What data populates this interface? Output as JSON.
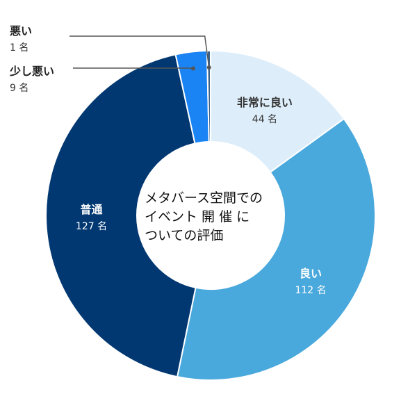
{
  "chart_data": {
    "type": "pie",
    "title_lines": [
      "メタバース空間での",
      "イベント 開 催 に",
      "ついての評価"
    ],
    "unit": "名",
    "categories": [
      "非常に良い",
      "良い",
      "普通",
      "少し悪い",
      "悪い"
    ],
    "values": [
      44,
      112,
      127,
      9,
      1
    ],
    "colors": [
      "#ddeefa",
      "#4aa9dc",
      "#023872",
      "#1a84f4",
      "#3c5f86"
    ],
    "label_colors": [
      "#333333",
      "#ffffff",
      "#ffffff",
      "#222222",
      "#222222"
    ]
  }
}
